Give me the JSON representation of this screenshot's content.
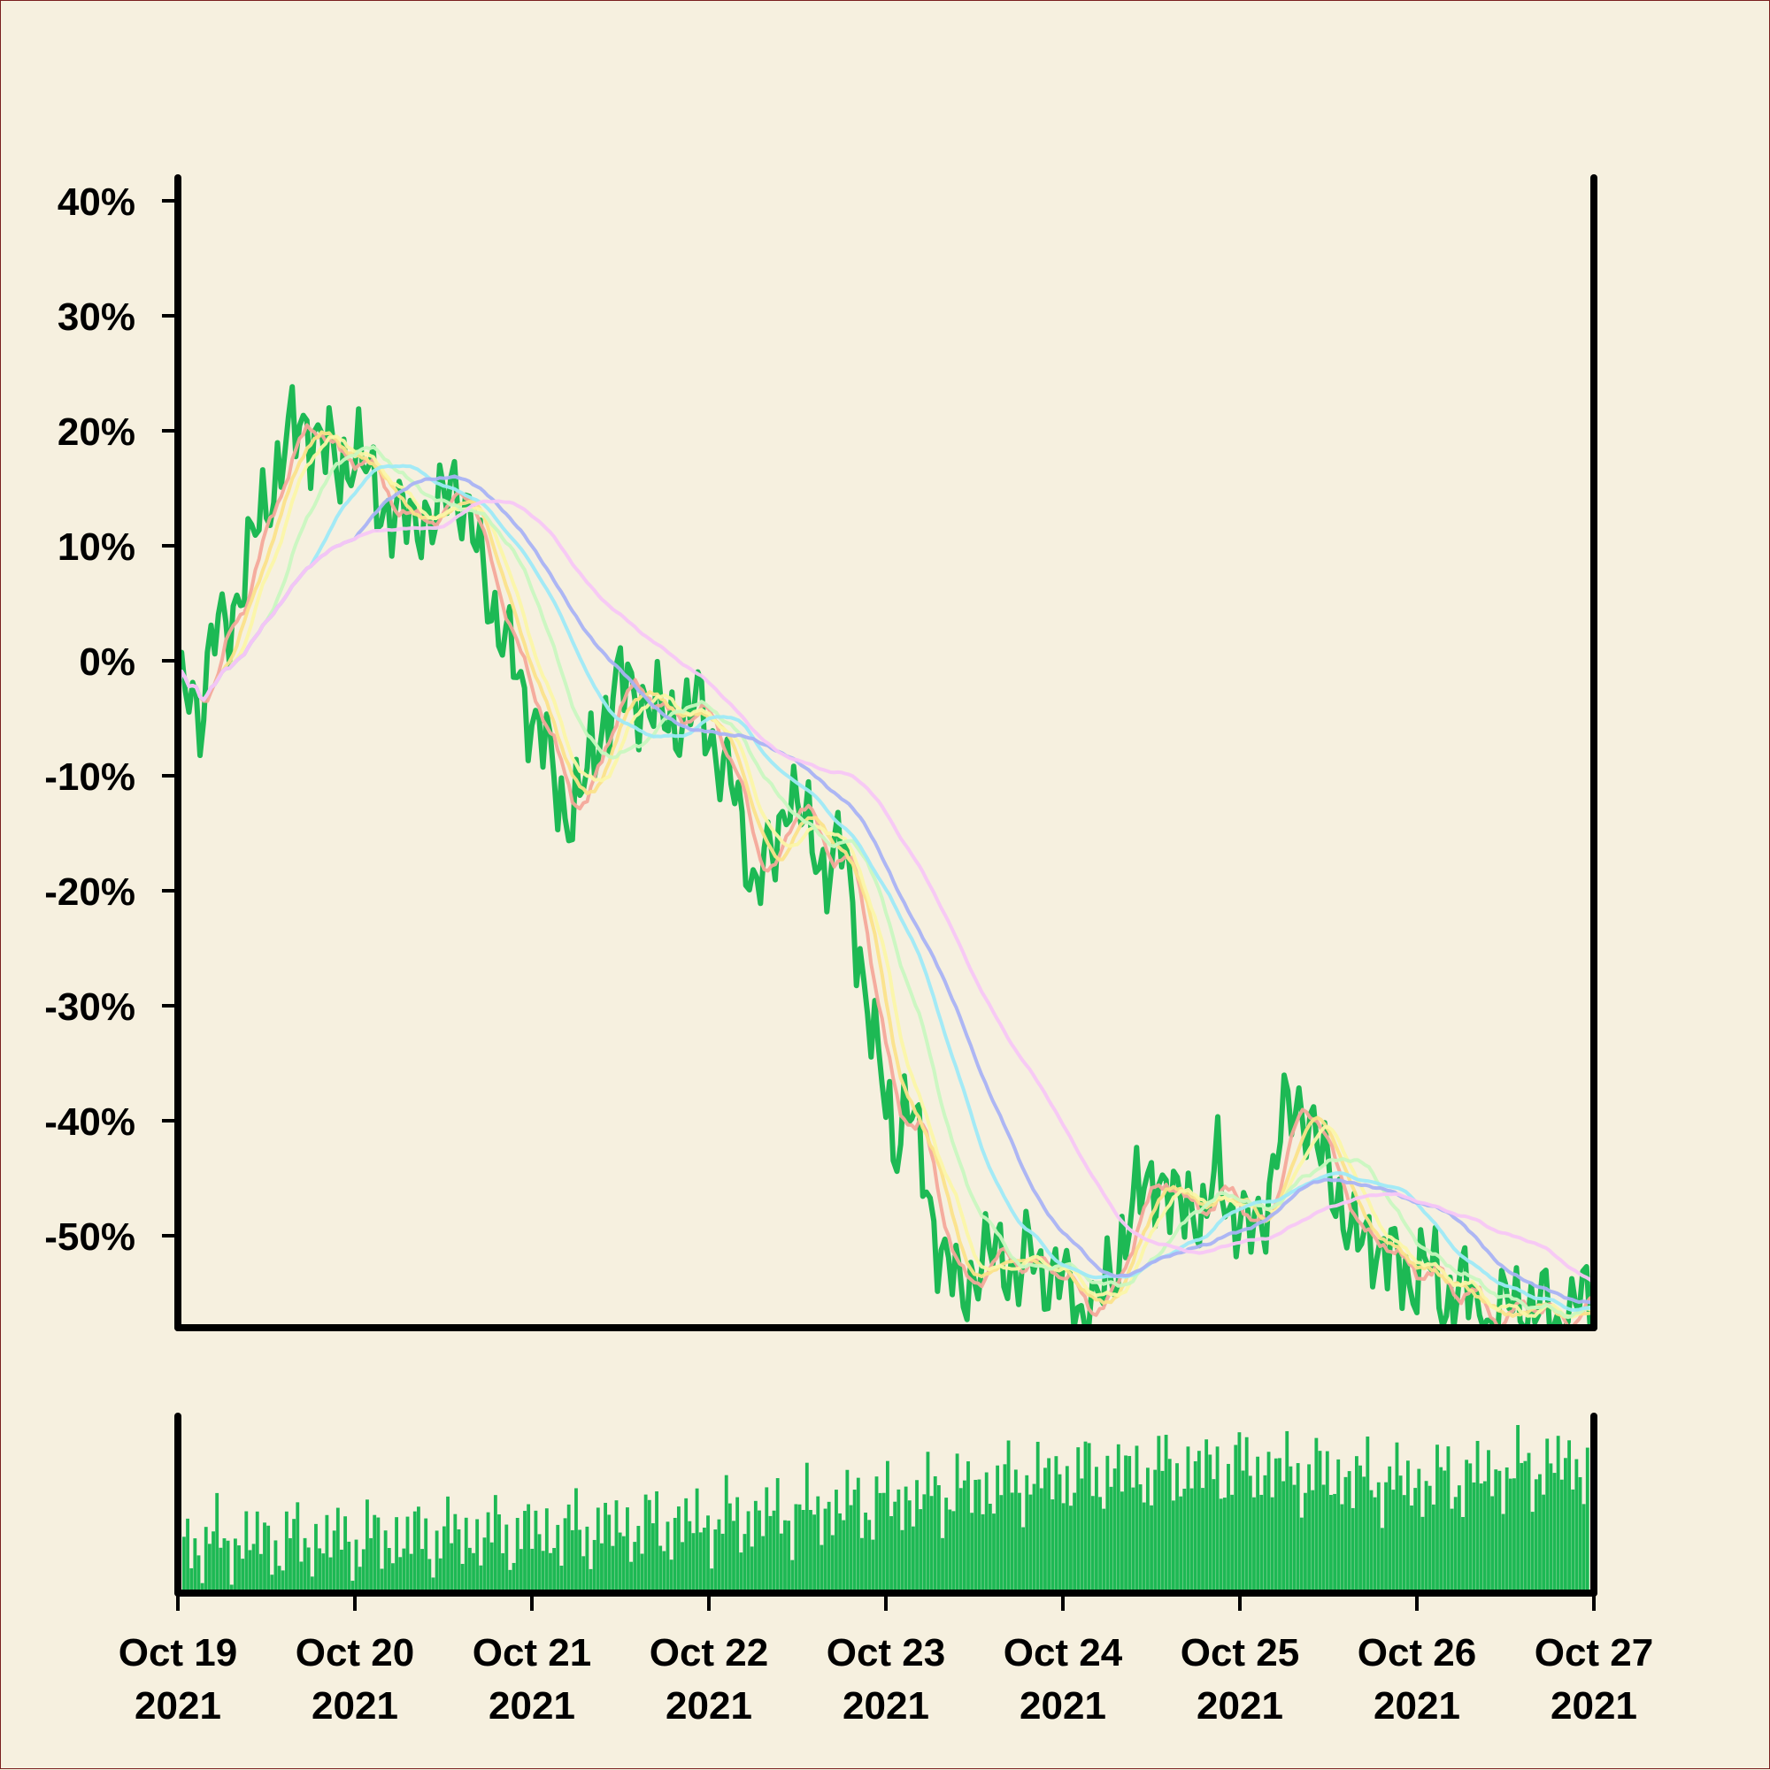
{
  "chart_data": [
    {
      "type": "line",
      "panel": "price",
      "y_axis_format": "percent",
      "ylim": [
        -58,
        42
      ],
      "yticks": [
        40,
        30,
        20,
        10,
        0,
        -10,
        -20,
        -30,
        -40,
        -50
      ],
      "ytick_labels": [
        "40%",
        "30%",
        "20%",
        "10%",
        "0%",
        "-10%",
        "-20%",
        "-30%",
        "-40%",
        "-50%"
      ],
      "x_range": [
        "2021-10-19",
        "2021-10-27"
      ],
      "xticks": [
        "2021-10-19",
        "2021-10-20",
        "2021-10-21",
        "2021-10-22",
        "2021-10-23",
        "2021-10-24",
        "2021-10-25",
        "2021-10-26",
        "2021-10-27"
      ],
      "xtick_labels": [
        [
          "Oct 19",
          "2021"
        ],
        [
          "Oct 20",
          "2021"
        ],
        [
          "Oct 21",
          "2021"
        ],
        [
          "Oct 22",
          "2021"
        ],
        [
          "Oct 23",
          "2021"
        ],
        [
          "Oct 24",
          "2021"
        ],
        [
          "Oct 25",
          "2021"
        ],
        [
          "Oct 26",
          "2021"
        ],
        [
          "Oct 27",
          "2021"
        ]
      ],
      "grid": false,
      "legend": "none",
      "main_series": {
        "color": "#1db954",
        "days": [
          0,
          0.08,
          0.12,
          0.2,
          0.28,
          0.38,
          0.5,
          0.62,
          0.72,
          0.8,
          0.9,
          1.0,
          1.12,
          1.22,
          1.38,
          1.45,
          1.55,
          1.62,
          1.72,
          1.82,
          1.95,
          2.05,
          2.15,
          2.22,
          2.3,
          2.4,
          2.5,
          2.62,
          2.72,
          2.82,
          2.95,
          3.05,
          3.15,
          3.25,
          3.38,
          3.45,
          3.55,
          3.65,
          3.75,
          3.85,
          3.95,
          4.05,
          4.12,
          4.22,
          4.32,
          4.42,
          4.5,
          4.58,
          4.65,
          4.75,
          4.82,
          4.88,
          5.0,
          5.08,
          5.18,
          5.3,
          5.42,
          5.52,
          5.62,
          5.72,
          5.8,
          5.88,
          5.95,
          6.05,
          6.15,
          6.25,
          6.35,
          6.45,
          6.55,
          6.65,
          6.75,
          6.85,
          6.95,
          7.05,
          7.15,
          7.25,
          7.35,
          7.45,
          7.55,
          7.65,
          7.72,
          7.8,
          7.88,
          7.95,
          8.0
        ],
        "values": [
          -4,
          -2,
          -5,
          2,
          3,
          8,
          14,
          19,
          21,
          19,
          17,
          18,
          15,
          12,
          13,
          11,
          17,
          13,
          8,
          3,
          -3,
          -6,
          -12,
          -13,
          -11,
          -5,
          -2,
          -3,
          -5,
          -5,
          -4,
          -8,
          -12,
          -19,
          -17,
          -10,
          -15,
          -18,
          -16,
          -25,
          -35,
          -42,
          -38,
          -45,
          -52,
          -55,
          -53,
          -52,
          -51,
          -54,
          -51,
          -53,
          -54,
          -56,
          -57,
          -52,
          -47,
          -44,
          -48,
          -46,
          -50,
          -43,
          -48,
          -50,
          -47,
          -40,
          -38,
          -43,
          -46,
          -51,
          -50,
          -52,
          -54,
          -52,
          -56,
          -54,
          -57,
          -58,
          -55,
          -57,
          -56,
          -58,
          -57,
          -55,
          -56
        ]
      },
      "moving_averages": [
        {
          "color": "#f4a89a",
          "window_days": 0.12
        },
        {
          "color": "#fbe28a",
          "window_days": 0.2
        },
        {
          "color": "#fbf6a8",
          "window_days": 0.3
        },
        {
          "color": "#c9f7c0",
          "window_days": 0.5
        },
        {
          "color": "#9ee9f7",
          "window_days": 0.75
        },
        {
          "color": "#a9b2f4",
          "window_days": 1.0
        },
        {
          "color": "#f7c6f5",
          "window_days": 1.5
        }
      ]
    },
    {
      "type": "bar",
      "panel": "volume",
      "color": "#1db954",
      "x_range": [
        "2021-10-19",
        "2021-10-27"
      ],
      "bars_per_day": 48,
      "ylim": [
        0,
        1
      ],
      "level_days": [
        0,
        1,
        2,
        3,
        4,
        5,
        6,
        7,
        8
      ],
      "level_values": [
        0.3,
        0.32,
        0.36,
        0.42,
        0.55,
        0.7,
        0.75,
        0.65,
        0.78
      ]
    }
  ]
}
